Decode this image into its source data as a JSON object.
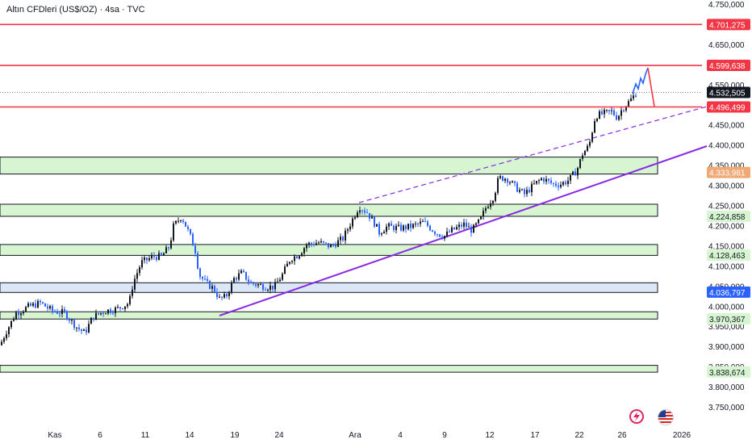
{
  "header": {
    "title": "Altın CFDleri (US$/OZ) · 4sa · TVC"
  },
  "colors": {
    "up_candle": "#131722",
    "down_candle": "#2962ff",
    "red_line": "#f23645",
    "zone_green": "#d6f5d0",
    "zone_blue": "#dbe6f7",
    "trend_purple": "#8a2be2",
    "forecast_blue": "#2962ff",
    "forecast_red": "#f23645"
  },
  "chart_data": {
    "type": "candlestick",
    "y_range": [
      3750,
      4750
    ],
    "x_ticks": [
      "Kas",
      "6",
      "11",
      "14",
      "19",
      "24",
      "Ara",
      "4",
      "9",
      "12",
      "17",
      "22",
      "26",
      "2026"
    ],
    "y_ticks": [
      "4.750,000",
      "4.700,000",
      "4.650,000",
      "4.600,000",
      "4.550,000",
      "4.500,000",
      "4.450,000",
      "4.400,000",
      "4.350,000",
      "4.300,000",
      "4.250,000",
      "4.200,000",
      "4.150,000",
      "4.100,000",
      "4.050,000",
      "4.000,000",
      "3.950,000",
      "3.900,000",
      "3.850,000",
      "3.800,000",
      "3.750,000"
    ],
    "price_tags": [
      {
        "label": "4.701,275",
        "value": 4701.275,
        "style": "red"
      },
      {
        "label": "4.599,638",
        "value": 4599.638,
        "style": "red"
      },
      {
        "label": "4.532,505",
        "value": 4532.505,
        "style": "current"
      },
      {
        "label": "4.496,499",
        "value": 4496.499,
        "style": "red"
      },
      {
        "label": "4.333,981",
        "value": 4333.981,
        "style": "orange"
      },
      {
        "label": "4.224,858",
        "value": 4224.858,
        "style": "green"
      },
      {
        "label": "4.128,463",
        "value": 4128.463,
        "style": "green"
      },
      {
        "label": "4.036,797",
        "value": 4036.797,
        "style": "blue"
      },
      {
        "label": "3.970,367",
        "value": 3970.367,
        "style": "green"
      },
      {
        "label": "3.838,674",
        "value": 3838.674,
        "style": "green"
      }
    ],
    "horizontal_lines": [
      4701.275,
      4599.638,
      4496.499
    ],
    "zones": [
      {
        "top": 4372,
        "bottom": 4330,
        "color": "green"
      },
      {
        "top": 4255,
        "bottom": 4225,
        "color": "green"
      },
      {
        "top": 4155,
        "bottom": 4128,
        "color": "green"
      },
      {
        "top": 4060,
        "bottom": 4036,
        "color": "blue"
      },
      {
        "top": 3988,
        "bottom": 3970,
        "color": "green"
      },
      {
        "top": 3855,
        "bottom": 3838,
        "color": "green"
      }
    ],
    "current_price": 4532.505
  },
  "icons": {
    "flash": "flash-icon",
    "flag": "us-flag-icon"
  }
}
